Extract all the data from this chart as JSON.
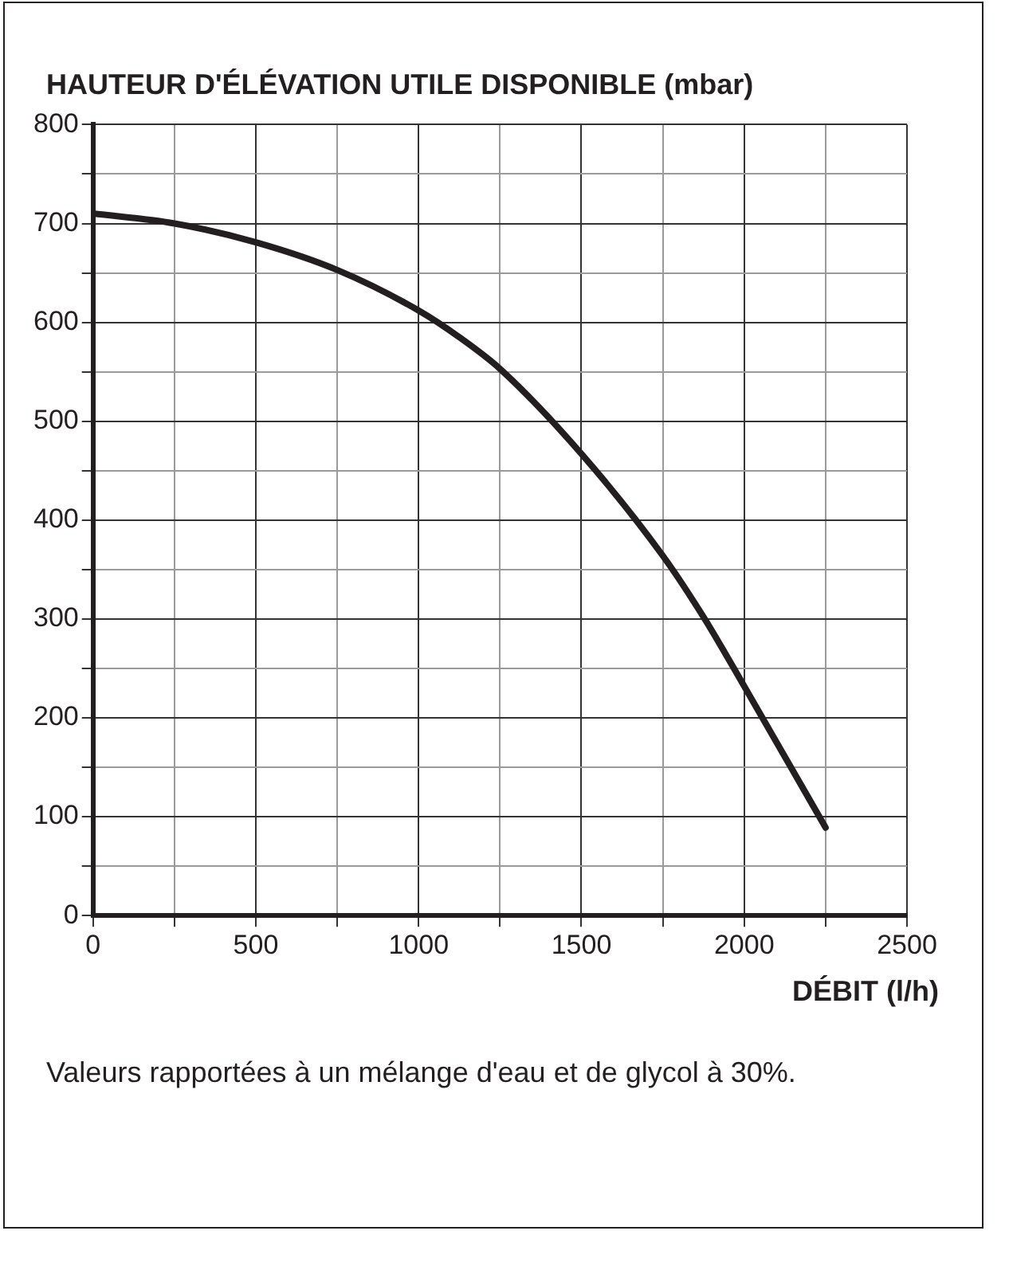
{
  "chart_data": {
    "type": "line",
    "title": "HAUTEUR D'ÉLÉVATION UTILE DISPONIBLE (mbar)",
    "xlabel": "DÉBIT (l/h)",
    "annotations": [
      "Valeurs rapportées à un mélange d'eau et de glycol à 30%."
    ],
    "x": [
      0,
      250,
      500,
      750,
      1000,
      1125,
      1250,
      1500,
      1750,
      1875,
      2000,
      2250
    ],
    "series": [
      {
        "color": "#231f20",
        "values": [
          710,
          700,
          681,
          653,
          612,
          585,
          553,
          467,
          364,
          302,
          232,
          89
        ]
      }
    ],
    "xlim": [
      0,
      2500
    ],
    "xticks": [
      0,
      {
        "value": 250,
        "label": null
      },
      500,
      {
        "value": 750,
        "label": null
      },
      1000,
      {
        "value": 1250,
        "label": null
      },
      1500,
      {
        "value": 1750,
        "label": null
      },
      2000,
      {
        "value": 2250,
        "label": null
      },
      2500
    ],
    "ylim": [
      0,
      800
    ],
    "yticks": [
      0,
      {
        "value": 50,
        "label": null
      },
      100,
      {
        "value": 150,
        "label": null
      },
      200,
      {
        "value": 250,
        "label": null
      },
      300,
      {
        "value": 350,
        "label": null
      },
      400,
      {
        "value": 450,
        "label": null
      },
      500,
      {
        "value": 550,
        "label": null
      },
      600,
      {
        "value": 650,
        "label": null
      },
      700,
      {
        "value": 750,
        "label": null
      },
      800
    ],
    "grid": true,
    "legend": false,
    "marker": "none",
    "line_style": "solid"
  }
}
